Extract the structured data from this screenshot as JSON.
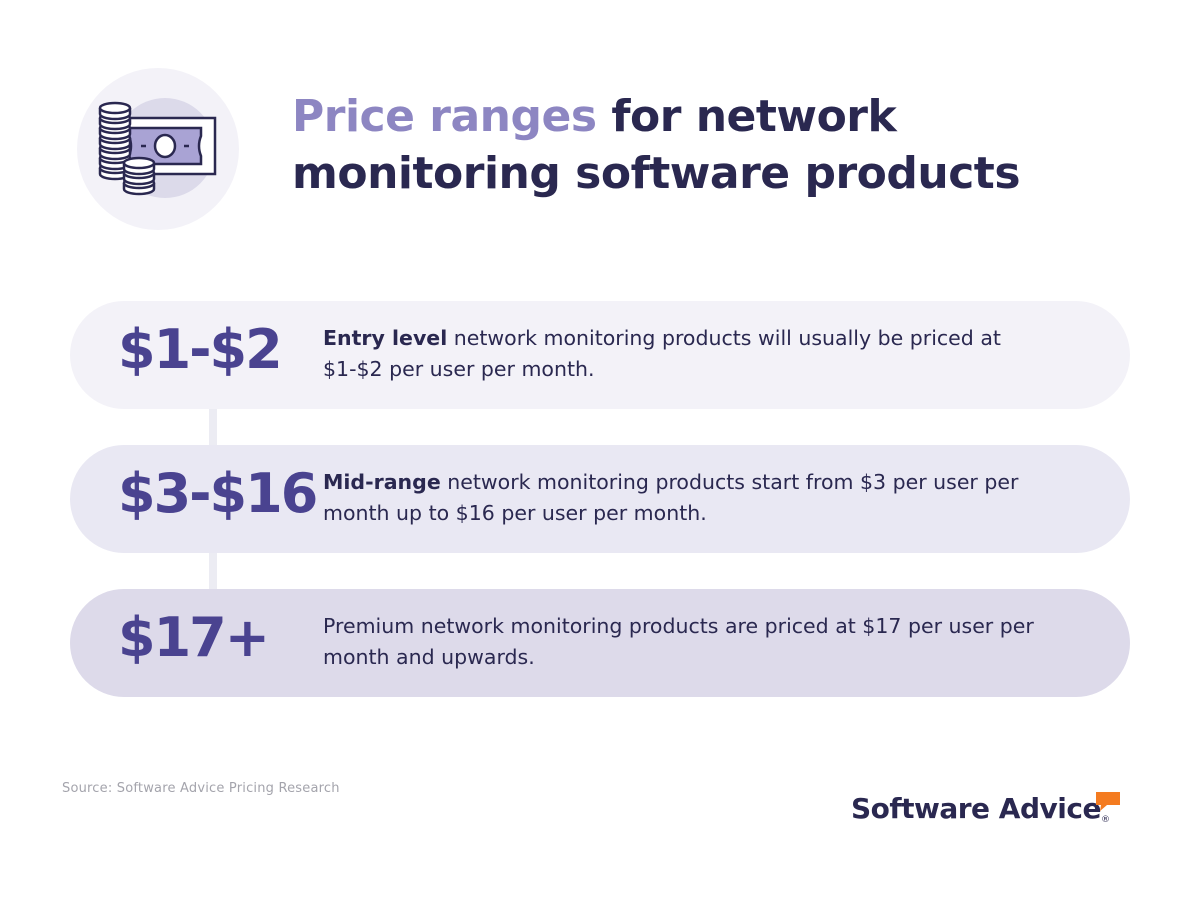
{
  "header": {
    "title_accent": "Price ranges",
    "title_rest": " for network monitoring software products",
    "icon": "money-coins-icon"
  },
  "tiers": [
    {
      "price": "$1-$2",
      "label": "Entry level",
      "text": " network monitoring products will usually be priced at $1-$2 per user per month."
    },
    {
      "price": "$3-$16",
      "label": "Mid-range",
      "text": " network monitoring products start from $3 per user per month up to $16 per user per month."
    },
    {
      "price": "$17+",
      "label": "",
      "text": "Premium network monitoring products are priced at $17 per user per month and upwards."
    }
  ],
  "footer": {
    "source": "Source: Software Advice Pricing Research",
    "logo_text": "Software Advice",
    "logo_mark": "®"
  },
  "colors": {
    "accent": "#8d86c2",
    "navy": "#2a2850",
    "price": "#4a4390",
    "logo_bubble": "#f47b20"
  }
}
